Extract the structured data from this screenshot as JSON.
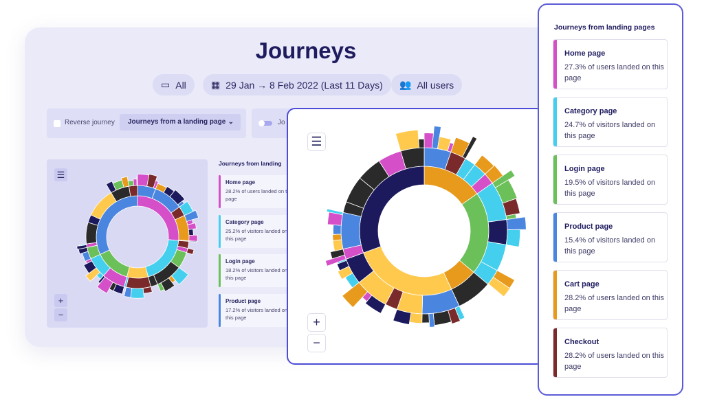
{
  "header": {
    "title": "Journeys",
    "device_filter": "All",
    "date_range": "29 Jan → 8 Feb 2022 (Last 11 Days)",
    "user_filter": "All users"
  },
  "controls": {
    "reverse_label": "Reverse journey",
    "journey_select": "Journeys from a landing page",
    "toggle_label": "Jo"
  },
  "left_list": {
    "title": "Journeys from landing",
    "items": [
      {
        "name": "Home page",
        "desc": "28.2% of users landed on this page",
        "color": "#d44fc8"
      },
      {
        "name": "Category page",
        "desc": "25.2% of visitors landed on this page",
        "color": "#45cfee"
      },
      {
        "name": "Login page",
        "desc": "18.2% of visitors landed on this page",
        "color": "#6cc05a"
      },
      {
        "name": "Product page",
        "desc": "17.2% of visitors landed on this page",
        "color": "#4a86e0"
      }
    ]
  },
  "right_list": {
    "title": "Journeys from landing pages",
    "items": [
      {
        "name": "Home page",
        "desc": "27.3% of users landed on this page",
        "color": "#d44fc8"
      },
      {
        "name": "Category page",
        "desc": "24.7% of visitors landed on this page",
        "color": "#45cfee"
      },
      {
        "name": "Login page",
        "desc": "19.5% of visitors landed on this page",
        "color": "#6cc05a"
      },
      {
        "name": "Product page",
        "desc": "15.4% of visitors landed on this page",
        "color": "#4a86e0"
      },
      {
        "name": "Cart page",
        "desc": "28.2% of users landed on this page",
        "color": "#e89a1c"
      },
      {
        "name": "Checkout",
        "desc": "28.2% of users landed on this page",
        "color": "#7a2a2a"
      }
    ]
  },
  "zoom": {
    "in": "+",
    "out": "−"
  },
  "palette": [
    "#1c1a5c",
    "#e89a1c",
    "#6cc05a",
    "#45cfee",
    "#d44fc8",
    "#4a86e0",
    "#7a2a2a",
    "#ffc94d",
    "#2a2a2a"
  ]
}
